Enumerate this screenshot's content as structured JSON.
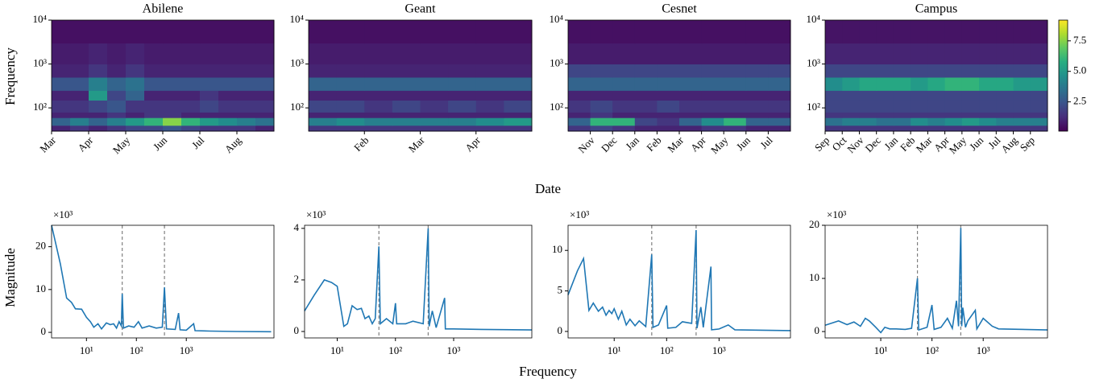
{
  "chart_data": [
    {
      "type": "heatmap",
      "title": "Abilene",
      "categories": [
        "Mar",
        null,
        "Apr",
        null,
        "May",
        null,
        "Jun",
        null,
        "Jul",
        null,
        "Aug",
        null
      ],
      "ybins": [
        29.5,
        40,
        60,
        80,
        150,
        250,
        500,
        1000,
        3000,
        10000
      ],
      "ylim": [
        29.5,
        10000
      ],
      "yscale": "log",
      "yticks": [
        {
          "value": 100,
          "label": "10²"
        },
        {
          "value": 1000,
          "label": "10³"
        },
        {
          "value": 10000,
          "label": "10⁴"
        }
      ],
      "colormap": "viridis",
      "z": [
        [
          1,
          1.5,
          1,
          1.5,
          2,
          2,
          2.5,
          2,
          1.5,
          1.5,
          1.5,
          1
        ],
        [
          3,
          4,
          3,
          4,
          5,
          6,
          7.5,
          6,
          5,
          4.5,
          4,
          3.5
        ],
        [
          1,
          1,
          1,
          1.5,
          1,
          1.5,
          1.5,
          1,
          1,
          1,
          1,
          1
        ],
        [
          1.5,
          1.5,
          2,
          2.5,
          1.5,
          1.5,
          1.5,
          1.5,
          2,
          1.5,
          1.5,
          1.5
        ],
        [
          1,
          1,
          5,
          2,
          3,
          1,
          1,
          1,
          1.5,
          1,
          1,
          1
        ],
        [
          2.5,
          2.5,
          4,
          3,
          3.5,
          2.5,
          2.5,
          2.5,
          2.5,
          2.5,
          2.5,
          2.5
        ],
        [
          1,
          1,
          1.5,
          1,
          1.5,
          1,
          1,
          1,
          1,
          1,
          1,
          1
        ],
        [
          0.8,
          0.8,
          1,
          0.8,
          1,
          0.8,
          0.8,
          0.8,
          0.8,
          0.8,
          0.8,
          0.8
        ],
        [
          0.5,
          0.5,
          0.5,
          0.5,
          0.5,
          0.5,
          0.5,
          0.5,
          0.5,
          0.5,
          0.5,
          0.5
        ]
      ]
    },
    {
      "type": "heatmap",
      "title": "Geant",
      "categories": [
        null,
        null,
        "Feb",
        null,
        "Mar",
        null,
        "Apr",
        null
      ],
      "ybins": [
        29.5,
        40,
        60,
        80,
        150,
        250,
        500,
        1000,
        3000,
        10000
      ],
      "ylim": [
        29.5,
        10000
      ],
      "yscale": "log",
      "yticks": [
        {
          "value": 100,
          "label": "10²"
        },
        {
          "value": 1000,
          "label": "10³"
        },
        {
          "value": 10000,
          "label": "10⁴"
        }
      ],
      "colormap": "viridis",
      "z": [
        [
          1.5,
          1.5,
          1.5,
          1.5,
          1.5,
          1.5,
          1.5,
          1.5
        ],
        [
          4,
          4.5,
          4,
          4,
          4,
          4,
          4.5,
          5
        ],
        [
          1,
          1,
          1,
          1,
          1,
          1,
          1,
          1
        ],
        [
          2,
          2,
          1.5,
          2,
          1.5,
          2,
          1.5,
          2
        ],
        [
          1,
          1,
          1,
          1,
          1,
          1,
          1,
          1
        ],
        [
          3,
          3,
          3,
          3,
          3,
          3,
          3,
          3
        ],
        [
          1,
          1,
          1,
          1,
          1,
          1,
          1,
          1
        ],
        [
          0.8,
          0.8,
          0.8,
          0.8,
          0.8,
          0.8,
          0.8,
          0.8
        ],
        [
          0.5,
          0.5,
          0.5,
          0.5,
          0.5,
          0.5,
          0.5,
          0.5
        ]
      ]
    },
    {
      "type": "heatmap",
      "title": "Cesnet",
      "categories": [
        null,
        "Nov",
        "Dec",
        "Jan",
        "Feb",
        "Mar",
        "Apr",
        "May",
        "Jun",
        "Jul"
      ],
      "ybins": [
        29.5,
        40,
        60,
        80,
        150,
        250,
        500,
        1000,
        3000,
        10000
      ],
      "ylim": [
        29.5,
        10000
      ],
      "yscale": "log",
      "yticks": [
        {
          "value": 100,
          "label": "10²"
        },
        {
          "value": 1000,
          "label": "10³"
        },
        {
          "value": 10000,
          "label": "10⁴"
        }
      ],
      "colormap": "viridis",
      "z": [
        [
          1.5,
          2,
          1.5,
          1,
          1,
          1,
          1.5,
          1.5,
          1,
          1
        ],
        [
          3,
          6,
          6,
          2,
          1.5,
          3,
          4.5,
          6,
          3,
          3
        ],
        [
          1,
          1.5,
          1,
          1,
          1,
          1,
          1,
          1,
          1,
          1
        ],
        [
          1.5,
          2,
          1.5,
          1.5,
          2,
          1.5,
          1.5,
          1.5,
          1.5,
          1.5
        ],
        [
          1,
          1,
          1,
          1,
          1,
          1,
          1,
          1,
          1,
          1
        ],
        [
          3,
          3,
          3,
          3,
          3,
          3,
          3,
          3,
          3,
          3
        ],
        [
          2,
          2,
          2,
          2,
          2,
          2,
          2,
          2,
          2,
          2
        ],
        [
          0.8,
          0.8,
          0.8,
          0.8,
          0.8,
          0.8,
          0.8,
          0.8,
          0.8,
          0.8
        ],
        [
          0.5,
          0.5,
          0.5,
          0.5,
          0.5,
          0.5,
          0.5,
          0.5,
          0.5,
          0.5
        ]
      ]
    },
    {
      "type": "heatmap",
      "title": "Campus",
      "categories": [
        "Sep",
        "Oct",
        "Nov",
        "Dec",
        "Jan",
        "Feb",
        "Mar",
        "Apr",
        "May",
        "Jun",
        "Jul",
        "Aug",
        "Sep"
      ],
      "ybins": [
        29.5,
        40,
        60,
        80,
        150,
        250,
        500,
        1000,
        3000,
        10000
      ],
      "ylim": [
        29.5,
        10000
      ],
      "yscale": "log",
      "yticks": [
        {
          "value": 100,
          "label": "10²"
        },
        {
          "value": 1000,
          "label": "10³"
        },
        {
          "value": 10000,
          "label": "10⁴"
        }
      ],
      "colormap": "viridis",
      "z": [
        [
          1.5,
          1.5,
          1.5,
          1.5,
          1.5,
          1.5,
          1.5,
          1.5,
          1.5,
          1.5,
          1.5,
          1.5,
          1.5
        ],
        [
          3.5,
          4,
          4,
          3.5,
          3.5,
          4.5,
          4,
          4.5,
          5,
          4.5,
          4,
          4,
          4
        ],
        [
          1.5,
          1.5,
          1.5,
          1.5,
          1.5,
          1.5,
          1.5,
          1.5,
          1.5,
          1.5,
          1.5,
          1.5,
          1.5
        ],
        [
          2,
          2,
          2,
          2,
          2,
          2,
          2,
          2,
          2,
          2,
          2,
          2,
          2
        ],
        [
          2,
          2,
          2,
          2,
          2,
          2,
          2,
          2,
          2,
          2,
          2,
          2,
          2
        ],
        [
          4.5,
          5,
          5.5,
          5.5,
          5.5,
          5,
          5.5,
          6,
          6,
          5.5,
          5.5,
          5,
          5
        ],
        [
          2,
          2,
          2,
          2,
          2,
          2,
          2,
          2,
          2,
          2,
          2,
          2,
          2
        ],
        [
          1,
          1,
          1,
          1,
          1,
          1,
          1,
          1,
          1,
          1,
          1,
          1,
          1
        ],
        [
          0.6,
          0.6,
          0.6,
          0.6,
          0.6,
          0.6,
          0.6,
          0.6,
          0.6,
          0.6,
          0.6,
          0.6,
          0.6
        ]
      ]
    },
    {
      "type": "line",
      "x": [
        2,
        3,
        4,
        5,
        6,
        8,
        10,
        12,
        14,
        17,
        20,
        25,
        30,
        35,
        40,
        45,
        50,
        52,
        55,
        70,
        90,
        110,
        130,
        180,
        250,
        330,
        365,
        400,
        600,
        700,
        750,
        1000,
        1400,
        1500,
        3000,
        10000,
        50000
      ],
      "series": [
        {
          "color": "#1f77b4",
          "values": [
            25,
            16,
            8,
            7,
            5.5,
            5.4,
            3.5,
            2.5,
            1.2,
            2,
            0.8,
            2.2,
            1.8,
            2,
            1,
            2.5,
            1.5,
            9,
            1,
            1.5,
            1.2,
            2.5,
            1,
            1.5,
            1,
            1.2,
            10.5,
            0.8,
            0.7,
            4.5,
            0.6,
            0.5,
            2,
            0.4,
            0.3,
            0.2,
            0.15
          ]
        }
      ],
      "xlim": [
        2,
        57000
      ],
      "xscale": "log",
      "xticks": [
        {
          "value": 10,
          "label": "10¹"
        },
        {
          "value": 100,
          "label": "10²"
        },
        {
          "value": 1000,
          "label": "10³"
        }
      ],
      "ylim": [
        -1.3,
        25
      ],
      "yticks": [
        0,
        10,
        20
      ],
      "y_multiplier_label": "×10³",
      "vlines": [
        52,
        365
      ],
      "vline_color": "#808080"
    },
    {
      "type": "line",
      "x": [
        2.75,
        4,
        6,
        8,
        10,
        13,
        15,
        18,
        22,
        26,
        30,
        35,
        40,
        45,
        52,
        55,
        70,
        90,
        100,
        105,
        150,
        200,
        300,
        365,
        380,
        430,
        500,
        700,
        720,
        1000,
        3000,
        22000
      ],
      "series": [
        {
          "color": "#1f77b4",
          "values": [
            0.8,
            1.4,
            2,
            1.9,
            1.75,
            0.2,
            0.3,
            1,
            0.85,
            0.9,
            0.5,
            0.6,
            0.3,
            0.5,
            3.3,
            0.3,
            0.5,
            0.3,
            1.1,
            0.3,
            0.3,
            0.4,
            0.3,
            4.0,
            0.2,
            0.8,
            0.15,
            1.3,
            0.1,
            0.1,
            0.08,
            0.06
          ]
        }
      ],
      "xlim": [
        2.75,
        22000
      ],
      "xscale": "log",
      "xticks": [
        {
          "value": 10,
          "label": "10¹"
        },
        {
          "value": 100,
          "label": "10²"
        },
        {
          "value": 1000,
          "label": "10³"
        }
      ],
      "ylim": [
        -0.25,
        4.12
      ],
      "yticks": [
        0,
        2,
        4
      ],
      "y_multiplier_label": "×10³",
      "vlines": [
        52,
        365
      ],
      "vline_color": "#808080"
    },
    {
      "type": "line",
      "x": [
        1.32,
        2,
        2.6,
        3.3,
        4,
        5,
        6,
        7,
        8,
        9,
        10,
        12,
        14,
        17,
        20,
        25,
        30,
        40,
        52,
        55,
        70,
        100,
        105,
        150,
        200,
        300,
        365,
        380,
        450,
        500,
        700,
        720,
        1000,
        1500,
        2000,
        23000
      ],
      "series": [
        {
          "color": "#1f77b4",
          "values": [
            4.5,
            7.5,
            9,
            2.6,
            3.5,
            2.5,
            3,
            2,
            2.6,
            2.2,
            2.8,
            1.5,
            2.5,
            0.8,
            1.5,
            0.7,
            1.3,
            0.6,
            9.5,
            0.5,
            0.8,
            3.2,
            0.4,
            0.5,
            1.2,
            1,
            12.5,
            0.4,
            3,
            0.5,
            8,
            0.2,
            0.3,
            0.8,
            0.2,
            0.1
          ]
        }
      ],
      "xlim": [
        1.32,
        23000
      ],
      "xscale": "log",
      "xticks": [
        {
          "value": 10,
          "label": "10¹"
        },
        {
          "value": 100,
          "label": "10²"
        },
        {
          "value": 1000,
          "label": "10³"
        }
      ],
      "ylim": [
        -0.8,
        13.1
      ],
      "yticks": [
        0,
        5,
        10
      ],
      "y_multiplier_label": "×10³",
      "vlines": [
        52,
        365
      ],
      "vline_color": "#808080"
    },
    {
      "type": "line",
      "x": [
        0.82,
        1.5,
        2.2,
        3,
        4,
        5,
        6,
        8,
        10,
        12,
        15,
        20,
        30,
        40,
        52,
        55,
        80,
        100,
        110,
        150,
        200,
        250,
        300,
        330,
        365,
        380,
        400,
        450,
        500,
        700,
        750,
        1000,
        1500,
        2000,
        18000
      ],
      "series": [
        {
          "color": "#1f77b4",
          "values": [
            1.2,
            2,
            1.3,
            1.8,
            1,
            2.5,
            2,
            0.8,
            -0.2,
            0.8,
            0.5,
            0.5,
            0.4,
            0.6,
            10,
            0.3,
            0.8,
            5,
            0.4,
            0.8,
            2.5,
            0.6,
            5.8,
            1,
            19.5,
            1,
            4.5,
            0.8,
            2,
            4,
            0.5,
            2.5,
            1,
            0.5,
            0.3
          ]
        }
      ],
      "xlim": [
        0.82,
        18000
      ],
      "xscale": "log",
      "xticks": [
        {
          "value": 10,
          "label": "10¹"
        },
        {
          "value": 100,
          "label": "10²"
        },
        {
          "value": 1000,
          "label": "10³"
        }
      ],
      "ylim": [
        -1.2,
        20
      ],
      "yticks": [
        0,
        10,
        20
      ],
      "y_multiplier_label": "×10³",
      "vlines": [
        52,
        365
      ],
      "vline_color": "#808080"
    }
  ],
  "colorbar": {
    "zlim": [
      0.1,
      9.2
    ],
    "ticks": [
      2.5,
      {
        "value": 5,
        "label": "5.0"
      },
      {
        "value": 7.5,
        "label": "7.5"
      }
    ]
  },
  "axis_labels": {
    "top_x": "Date",
    "top_y": "Frequency",
    "bottom_x": "Frequency",
    "bottom_y": "Magnitude"
  }
}
